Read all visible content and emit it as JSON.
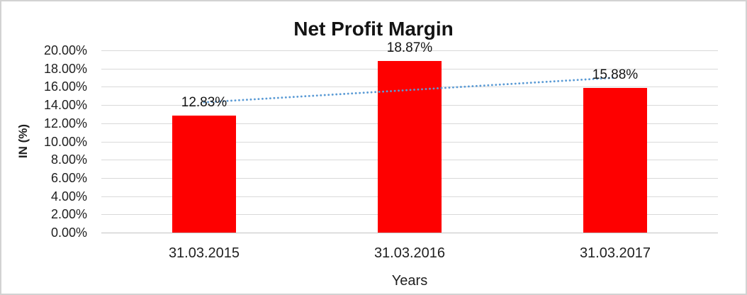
{
  "figure": {
    "background": "#ffffff",
    "border_color": "#d2d2d2"
  },
  "chart_data": {
    "type": "bar",
    "title": "Net Profit Margin",
    "xlabel": "Years",
    "ylabel": "IN (%)",
    "categories": [
      "31.03.2015",
      "31.03.2016",
      "31.03.2017"
    ],
    "values": [
      12.83,
      18.87,
      15.88
    ],
    "data_labels": [
      "12.83%",
      "18.87%",
      "15.88%"
    ],
    "ylim": [
      0,
      20
    ],
    "ytick_step": 2,
    "ytick_labels": [
      "20.00%",
      "18.00%",
      "16.00%",
      "14.00%",
      "12.00%",
      "10.00%",
      "8.00%",
      "6.00%",
      "4.00%",
      "2.00%",
      "0.00%"
    ],
    "grid": true,
    "legend": "none",
    "bar_color": "#fe0000",
    "gridline_color": "#d9d9d9",
    "trendline": {
      "style": "dotted",
      "color": "#5b9bd5",
      "start_category": 1,
      "end_category": 3,
      "start_value": 14.3,
      "end_value": 17.0
    }
  }
}
